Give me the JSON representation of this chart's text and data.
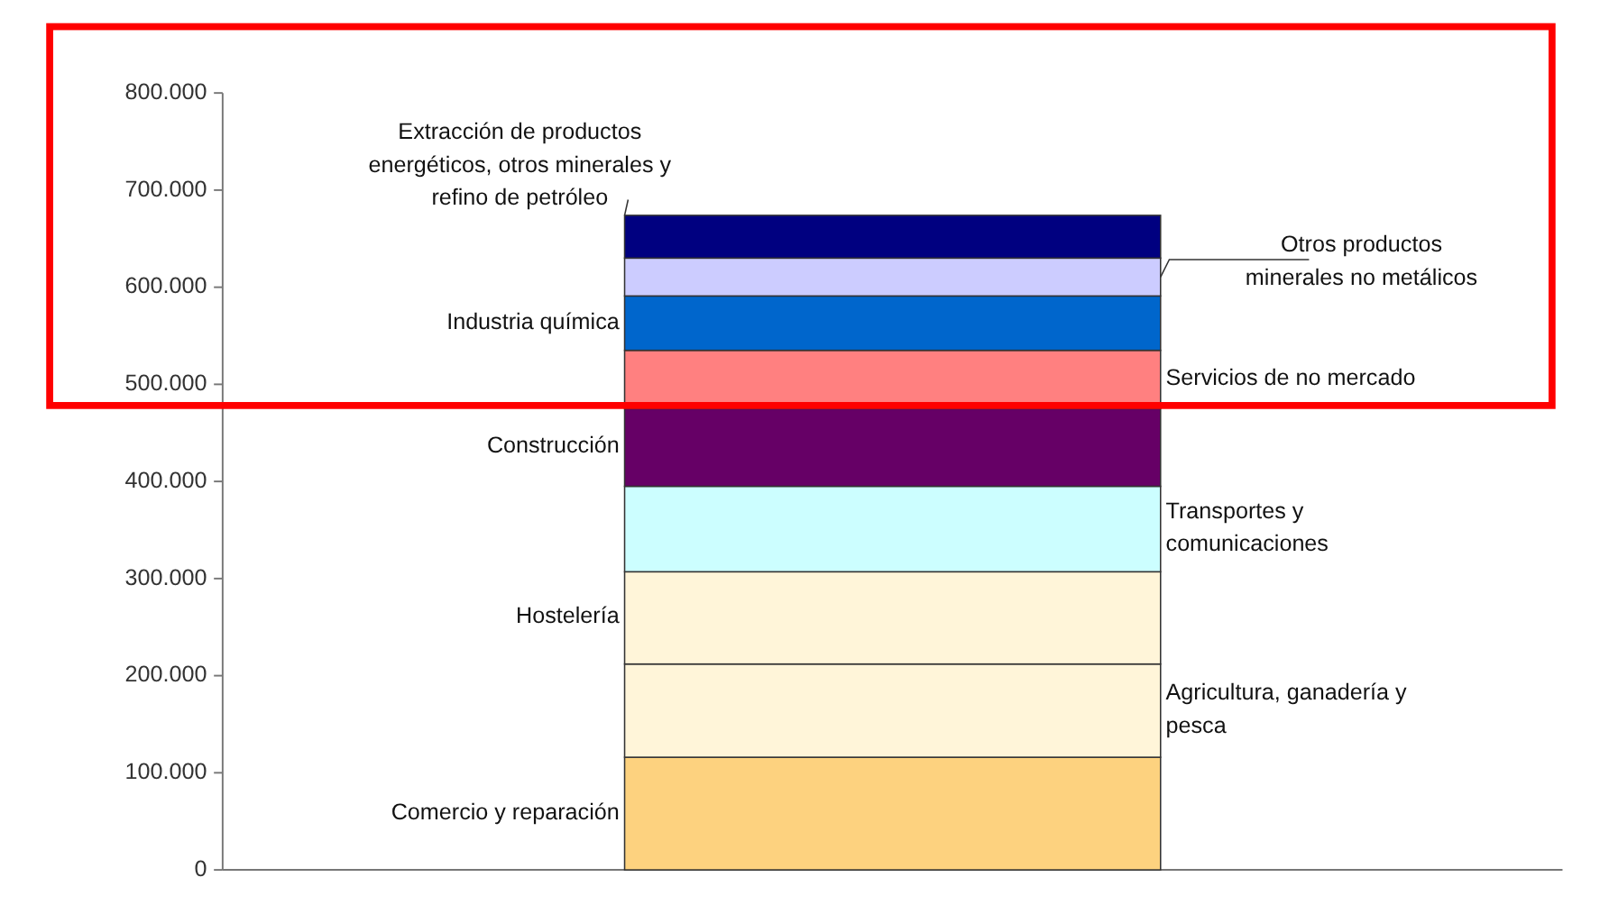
{
  "chart_data": {
    "type": "bar",
    "stacked": true,
    "categories": [
      null
    ],
    "tick_labels": "y",
    "grid": false,
    "legend": false,
    "ylim": [
      0,
      800000
    ],
    "yticks": [
      0,
      {
        "value": 100000,
        "label": "100.000"
      },
      {
        "value": 200000,
        "label": "200.000"
      },
      {
        "value": 300000,
        "label": "300.000"
      },
      {
        "value": 400000,
        "label": "400.000"
      },
      {
        "value": 500000,
        "label": "500.000"
      },
      {
        "value": 600000,
        "label": "600.000"
      },
      {
        "value": 700000,
        "label": "700.000"
      },
      {
        "value": 800000,
        "label": "800.000"
      }
    ],
    "series": [
      {
        "name": "Comercio y reparación",
        "color": "#fdd27f",
        "values": [
          116000
        ]
      },
      {
        "name": "Agricultura, ganadería y pesca",
        "color": "#fff5d9",
        "values": [
          96000
        ]
      },
      {
        "name": "Hostelería",
        "color": "#fff5d9",
        "values": [
          95000
        ]
      },
      {
        "name": "Transportes y comunicaciones",
        "color": "#ccfeff",
        "values": [
          88000
        ]
      },
      {
        "name": "Construcción",
        "color": "#660066",
        "values": [
          80000
        ]
      },
      {
        "name": "Servicios de no mercado",
        "color": "#ff8080",
        "values": [
          60000
        ]
      },
      {
        "name": "Industria química",
        "color": "#0066cc",
        "values": [
          56000
        ]
      },
      {
        "name": "Otros productos minerales no metálicos",
        "color": "#ccccff",
        "values": [
          39000
        ]
      },
      {
        "name": "Extracción de productos energéticos, otros minerales y refino de petróleo",
        "color": "#000080",
        "values": [
          44000
        ]
      }
    ]
  }
}
